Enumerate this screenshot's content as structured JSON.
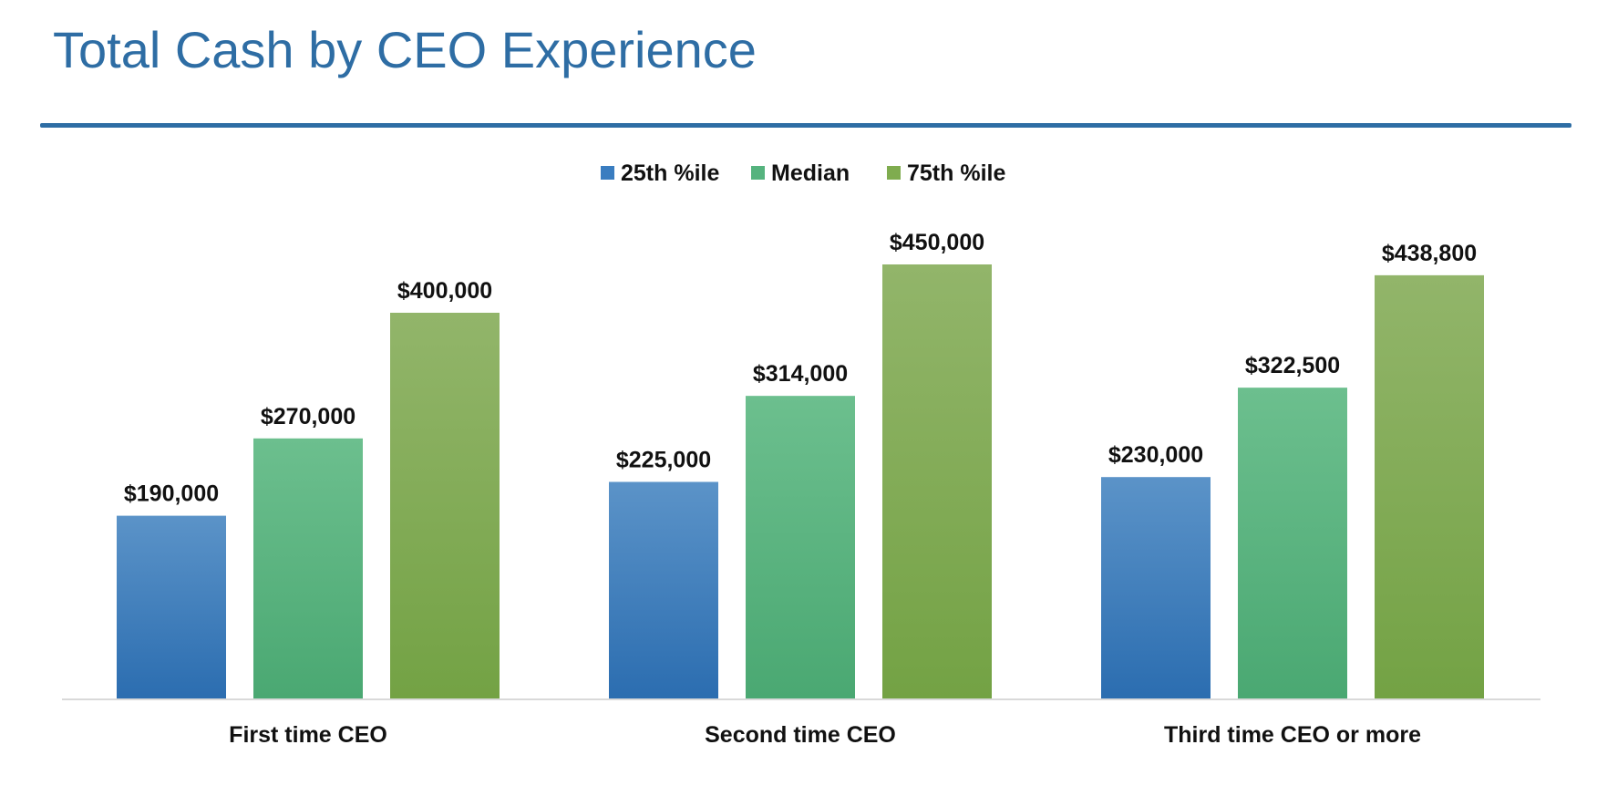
{
  "page": {
    "title": "Total Cash by CEO Experience"
  },
  "colors": {
    "title": "#2e6da4",
    "series": [
      "#3a7dc0",
      "#55b37e",
      "#7fac4f"
    ],
    "series_top": [
      "#5b93c8",
      "#6cbf8e",
      "#92b56a"
    ],
    "series_bottom": [
      "#2b6db0",
      "#4aa872",
      "#73a244"
    ]
  },
  "chart_data": {
    "type": "bar",
    "title": "Total Cash by CEO Experience",
    "xlabel": "",
    "ylabel": "",
    "categories": [
      "First time CEO",
      "Second time CEO",
      "Third time CEO or more"
    ],
    "series": [
      {
        "name": "25th %ile",
        "values": [
          190000,
          225000,
          230000
        ],
        "labels": [
          "$190,000",
          "$225,000",
          "$230,000"
        ]
      },
      {
        "name": "Median",
        "values": [
          270000,
          314000,
          322500
        ],
        "labels": [
          "$270,000",
          "$314,000",
          "$322,500"
        ]
      },
      {
        "name": "75th %ile",
        "values": [
          400000,
          450000,
          438800
        ],
        "labels": [
          "$400,000",
          "$450,000",
          "$438,800"
        ]
      }
    ],
    "ylim": [
      0,
      450000
    ],
    "grid": false,
    "legend_position": "top-center"
  }
}
